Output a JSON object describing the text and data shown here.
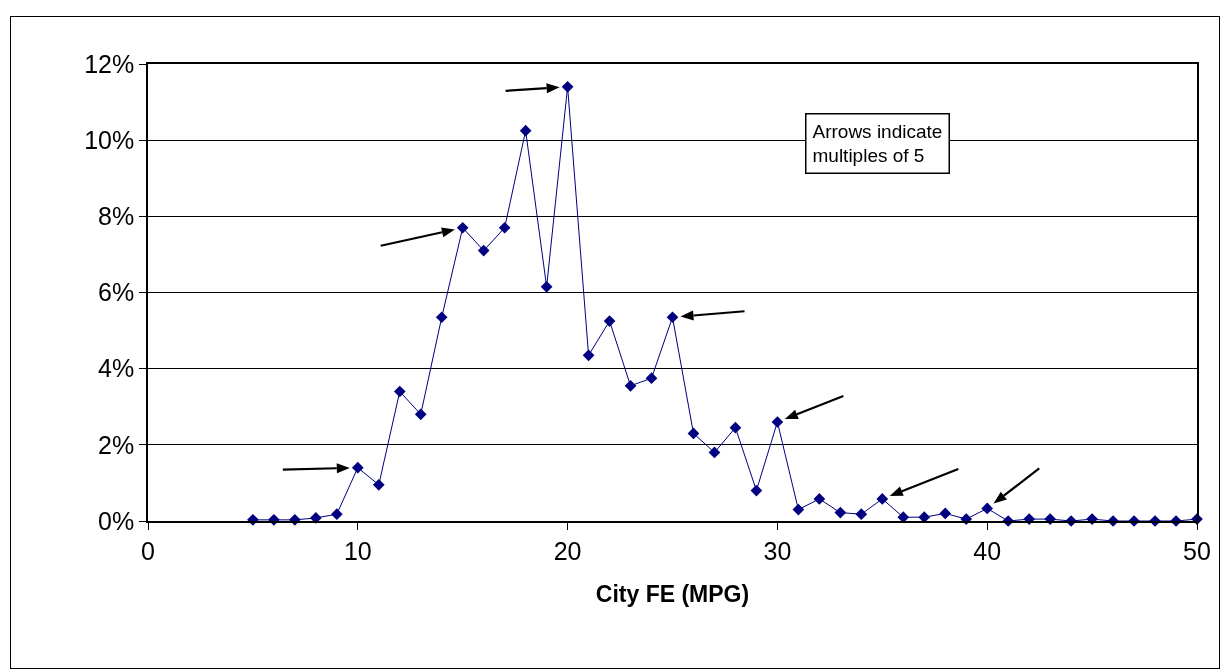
{
  "chart_data": {
    "type": "line",
    "xlabel": "City FE (MPG)",
    "x": [
      5,
      6,
      7,
      8,
      9,
      10,
      11,
      12,
      13,
      14,
      15,
      16,
      17,
      18,
      19,
      20,
      21,
      22,
      23,
      24,
      25,
      26,
      27,
      28,
      29,
      30,
      31,
      32,
      33,
      34,
      35,
      36,
      37,
      38,
      39,
      40,
      41,
      42,
      43,
      44,
      45,
      46,
      47,
      48,
      49,
      50
    ],
    "series": [
      {
        "color": "#000080",
        "values": [
          0.03,
          0.03,
          0.03,
          0.08,
          0.18,
          1.4,
          0.95,
          3.4,
          2.8,
          5.35,
          7.7,
          7.1,
          7.7,
          10.25,
          6.15,
          11.4,
          4.35,
          5.25,
          3.55,
          3.75,
          5.35,
          2.3,
          1.8,
          2.45,
          0.8,
          2.6,
          0.3,
          0.58,
          0.22,
          0.18,
          0.58,
          0.1,
          0.1,
          0.2,
          0.05,
          0.33,
          0,
          0.05,
          0.05,
          0,
          0.05,
          0,
          0,
          0,
          0,
          0.05
        ]
      }
    ],
    "xlim": [
      0,
      50
    ],
    "xticks": [
      0,
      10,
      20,
      30,
      40,
      50
    ],
    "ylim": [
      0,
      12
    ],
    "yticks": [
      {
        "value": 0,
        "label": "0%"
      },
      {
        "value": 2,
        "label": "2%"
      },
      {
        "value": 4,
        "label": "4%"
      },
      {
        "value": 6,
        "label": "6%"
      },
      {
        "value": 8,
        "label": "8%"
      },
      {
        "value": 10,
        "label": "10%"
      },
      {
        "value": 12,
        "label": "12%"
      }
    ],
    "annotations": [
      "Arrows indicate multiples of 5"
    ],
    "grid": "y",
    "marker": "diamond",
    "line_style": "solid"
  }
}
